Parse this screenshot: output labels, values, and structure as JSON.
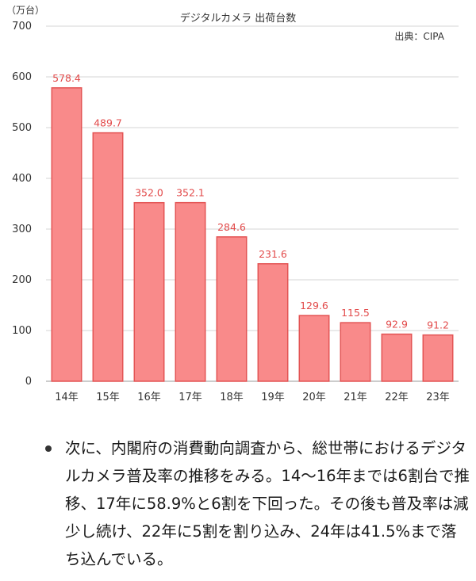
{
  "chart_data": {
    "type": "bar",
    "title": "デジタルカメラ 出荷台数",
    "source": "出典：CIPA",
    "y_unit": "（万台）",
    "categories": [
      "14年",
      "15年",
      "16年",
      "17年",
      "18年",
      "19年",
      "20年",
      "21年",
      "22年",
      "23年"
    ],
    "values": [
      578.4,
      489.7,
      352.0,
      352.1,
      284.6,
      231.6,
      129.6,
      115.5,
      92.9,
      91.2
    ],
    "value_labels": [
      "578.4",
      "489.7",
      "352.0",
      "352.1",
      "284.6",
      "231.6",
      "129.6",
      "115.5",
      "92.9",
      "91.2"
    ],
    "ylim": [
      0,
      700
    ],
    "yticks": [
      0,
      100,
      200,
      300,
      400,
      500,
      600,
      700
    ],
    "grid": true,
    "colors": {
      "bar_fill": "#f98a8a",
      "bar_stroke": "#e35454",
      "value_label": "#e24a4a",
      "grid": "#d6d6d6"
    }
  },
  "bullet": {
    "text": "次に、内閣府の消費動向調査から、総世帯におけるデジタルカメラ普及率の推移をみる。14〜16年までは6割台で推移、17年に58.9%と6割を下回った。その後も普及率は減少し続け、22年に5割を割り込み、24年は41.5%まで落ち込んでいる。"
  }
}
